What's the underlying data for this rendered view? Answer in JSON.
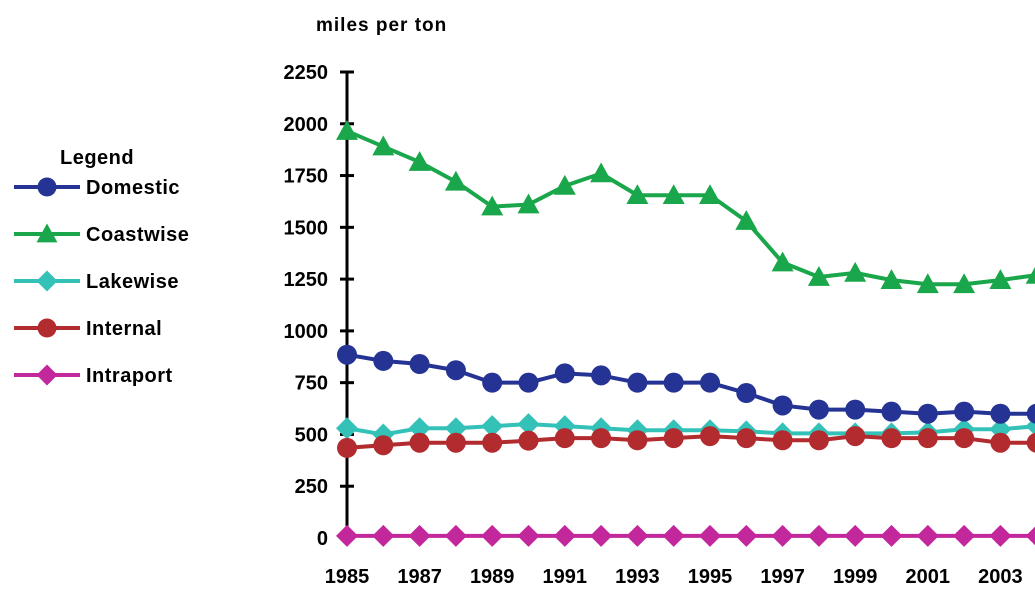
{
  "chart_data": {
    "type": "line",
    "ylabel": "miles per ton",
    "ylim": [
      0,
      2250
    ],
    "yticks": [
      0,
      250,
      500,
      750,
      1000,
      1250,
      1500,
      1750,
      2000,
      2250
    ],
    "x": [
      1985,
      1986,
      1987,
      1988,
      1989,
      1990,
      1991,
      1992,
      1993,
      1994,
      1995,
      1996,
      1997,
      1998,
      1999,
      2000,
      2001,
      2002,
      2003,
      2004
    ],
    "xtick_labels": [
      "1985",
      "1987",
      "1989",
      "1991",
      "1993",
      "1995",
      "1997",
      "1999",
      "2001",
      "2003"
    ],
    "grid": false,
    "legend": {
      "title": "Legend",
      "position": "left"
    },
    "series": [
      {
        "name": "Domestic",
        "color": "#253494",
        "marker": "circle",
        "values": [
          885,
          855,
          840,
          810,
          750,
          750,
          795,
          785,
          750,
          750,
          750,
          700,
          640,
          620,
          620,
          610,
          600,
          610,
          600,
          600
        ]
      },
      {
        "name": "Coastwise",
        "color": "#1aa64a",
        "marker": "triangle",
        "values": [
          1965,
          1890,
          1815,
          1720,
          1600,
          1610,
          1700,
          1760,
          1655,
          1655,
          1655,
          1530,
          1330,
          1260,
          1280,
          1245,
          1225,
          1225,
          1245,
          1270
        ]
      },
      {
        "name": "Lakewise",
        "color": "#34c1b8",
        "marker": "diamond",
        "values": [
          530,
          500,
          530,
          530,
          540,
          550,
          540,
          530,
          520,
          520,
          520,
          515,
          505,
          505,
          505,
          505,
          510,
          525,
          525,
          540
        ]
      },
      {
        "name": "Internal",
        "color": "#b22b2f",
        "marker": "circle",
        "values": [
          435,
          448,
          460,
          460,
          460,
          470,
          482,
          482,
          472,
          482,
          492,
          482,
          472,
          472,
          492,
          482,
          482,
          482,
          460,
          460
        ]
      },
      {
        "name": "Intraport",
        "color": "#c2289c",
        "marker": "diamond",
        "values": [
          10,
          10,
          10,
          10,
          10,
          10,
          10,
          10,
          10,
          10,
          10,
          10,
          10,
          10,
          10,
          10,
          10,
          10,
          10,
          10
        ]
      }
    ]
  }
}
